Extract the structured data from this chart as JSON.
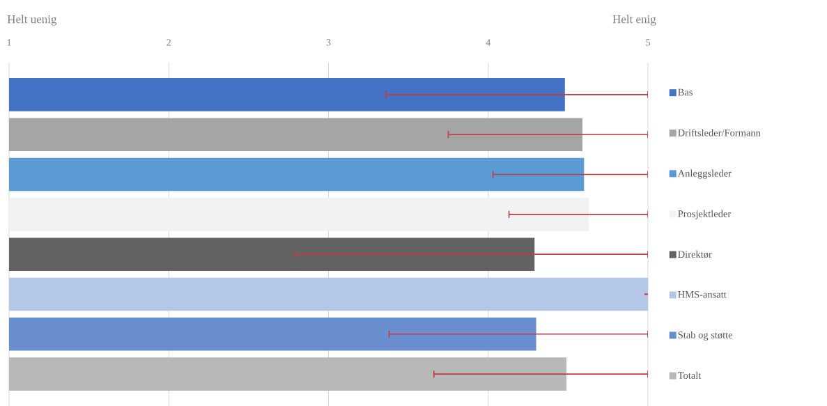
{
  "chart_data": {
    "type": "bar",
    "orientation": "horizontal",
    "categories": [
      null
    ],
    "xlim": [
      1,
      5
    ],
    "xticks": [
      1,
      2,
      3,
      4,
      5
    ],
    "grid": "x",
    "legend": "right",
    "annotations": [
      "Helt uenig",
      "Helt enig"
    ],
    "series": [
      {
        "name": "Bas",
        "color": "#4472c4",
        "values": [
          4.48
        ],
        "errors": [
          [
            3.36,
            5
          ]
        ]
      },
      {
        "name": "Driftsleder/Formann",
        "color": "#a5a5a5",
        "values": [
          4.59
        ],
        "errors": [
          [
            3.75,
            5
          ]
        ]
      },
      {
        "name": "Anleggsleder",
        "color": "#5b9bd5",
        "values": [
          4.6
        ],
        "errors": [
          [
            4.03,
            5
          ]
        ]
      },
      {
        "name": "Prosjektleder",
        "color": "#f2f2f2",
        "values": [
          4.63
        ],
        "errors": [
          [
            4.13,
            5
          ]
        ]
      },
      {
        "name": "Direktør",
        "color": "#636363",
        "values": [
          4.29
        ],
        "errors": [
          [
            2.79,
            5
          ]
        ]
      },
      {
        "name": "HMS-ansatt",
        "color": "#b4c7e7",
        "values": [
          5
        ],
        "errors": [
          [
            5,
            5
          ]
        ]
      },
      {
        "name": "Stab og støtte",
        "color": "#698ed0",
        "values": [
          4.3
        ],
        "errors": [
          [
            3.38,
            5
          ]
        ]
      },
      {
        "name": "Totalt",
        "color": "#b8b8b8",
        "values": [
          4.49
        ],
        "errors": [
          [
            3.66,
            5
          ]
        ]
      }
    ]
  }
}
